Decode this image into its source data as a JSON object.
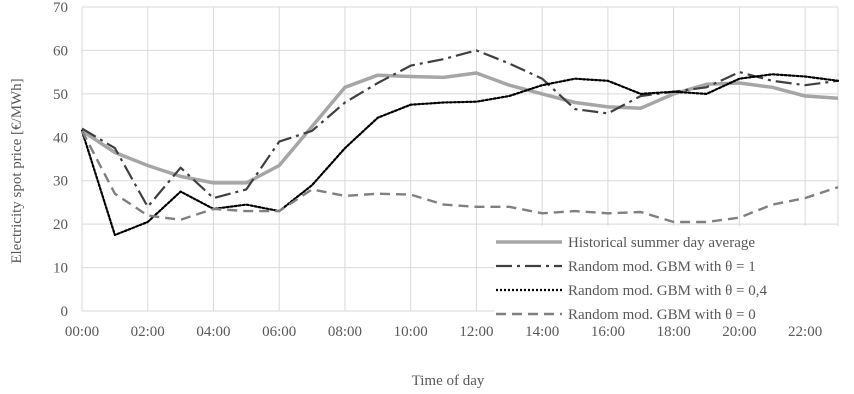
{
  "chart_data": {
    "type": "line",
    "title": "",
    "xlabel": "Time of day",
    "ylabel": "Electricity spot price [€/MWh]",
    "ylim": [
      0,
      70
    ],
    "yticks": [
      0,
      10,
      20,
      30,
      40,
      50,
      60,
      70
    ],
    "x": [
      "00:00",
      "01:00",
      "02:00",
      "03:00",
      "04:00",
      "05:00",
      "06:00",
      "07:00",
      "08:00",
      "09:00",
      "10:00",
      "11:00",
      "12:00",
      "13:00",
      "14:00",
      "15:00",
      "16:00",
      "17:00",
      "18:00",
      "19:00",
      "20:00",
      "21:00",
      "22:00",
      "23:00"
    ],
    "xtick_labels": [
      "00:00",
      "02:00",
      "04:00",
      "06:00",
      "08:00",
      "10:00",
      "12:00",
      "14:00",
      "16:00",
      "18:00",
      "20:00",
      "22:00"
    ],
    "grid": true,
    "legend_position": "bottom-right",
    "series": [
      {
        "name": "Historical summer day average",
        "style": "solid",
        "color": "#a6a6a6",
        "values": [
          41.5,
          36.5,
          33.5,
          31.0,
          29.5,
          29.5,
          33.5,
          42.5,
          51.5,
          54.3,
          54.0,
          53.8,
          54.8,
          52.0,
          50.0,
          48.0,
          47.0,
          46.7,
          50.0,
          52.2,
          52.5,
          51.5,
          49.5,
          49.0
        ]
      },
      {
        "name": "Random mod. GBM with θ = 1",
        "style": "dashdot",
        "color": "#404040",
        "values": [
          42.0,
          37.5,
          24.0,
          33.0,
          26.0,
          28.0,
          39.0,
          41.5,
          48.0,
          52.5,
          56.5,
          58.0,
          60.0,
          57.0,
          53.5,
          46.5,
          45.5,
          49.5,
          50.5,
          51.5,
          55.0,
          53.0,
          52.0,
          53.0
        ]
      },
      {
        "name": "Random mod. GBM with θ = 0,4",
        "style": "dotted",
        "color": "#000000",
        "values": [
          41.5,
          17.5,
          20.5,
          27.5,
          23.5,
          24.5,
          23.0,
          29.0,
          37.5,
          44.5,
          47.5,
          48.0,
          48.2,
          49.5,
          52.0,
          53.5,
          53.0,
          50.0,
          50.5,
          50.0,
          53.5,
          54.5,
          54.0,
          53.0
        ]
      },
      {
        "name": "Random mod. GBM with θ = 0",
        "style": "dashed",
        "color": "#808080",
        "values": [
          41.5,
          27.0,
          22.0,
          21.0,
          23.5,
          23.0,
          23.0,
          28.0,
          26.5,
          27.0,
          26.8,
          24.5,
          24.0,
          24.0,
          22.5,
          23.0,
          22.5,
          22.8,
          20.5,
          20.5,
          21.5,
          24.5,
          26.0,
          28.5
        ]
      }
    ]
  }
}
